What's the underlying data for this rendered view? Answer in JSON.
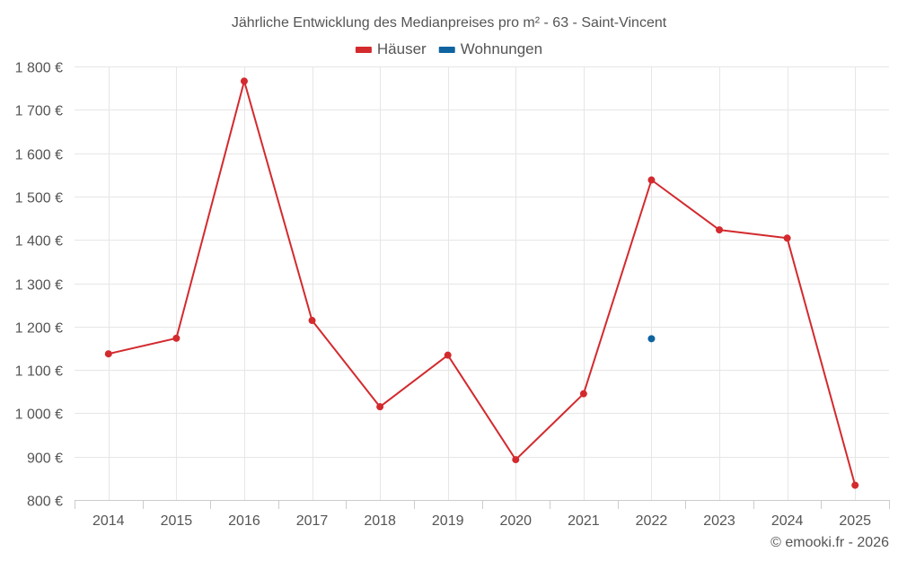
{
  "chart_data": {
    "type": "line",
    "title": "Jährliche Entwicklung des Medianpreises pro m² - 63 - Saint-Vincent",
    "categories": [
      "2014",
      "2015",
      "2016",
      "2017",
      "2018",
      "2019",
      "2020",
      "2021",
      "2022",
      "2023",
      "2024",
      "2025"
    ],
    "series": [
      {
        "name": "Häuser",
        "color": "#d32a2e",
        "values": [
          1137,
          1173,
          1766,
          1214,
          1015,
          1134,
          893,
          1045,
          1538,
          1423,
          1404,
          834
        ]
      },
      {
        "name": "Wohnungen",
        "color": "#0f64a0",
        "values": [
          null,
          null,
          null,
          null,
          null,
          null,
          null,
          null,
          1172,
          null,
          null,
          null
        ]
      }
    ],
    "ylim": [
      800,
      1800
    ],
    "yticks": [
      800,
      900,
      1000,
      1100,
      1200,
      1300,
      1400,
      1500,
      1600,
      1700,
      1800
    ],
    "ytick_labels": [
      "800 €",
      "900 €",
      "1 000 €",
      "1 100 €",
      "1 200 €",
      "1 300 €",
      "1 400 €",
      "1 500 €",
      "1 600 €",
      "1 700 €",
      "1 800 €"
    ],
    "xlabel": "",
    "ylabel": "",
    "grid": true,
    "legend_position": "top-center"
  },
  "credit": "© emooki.fr - 2026"
}
